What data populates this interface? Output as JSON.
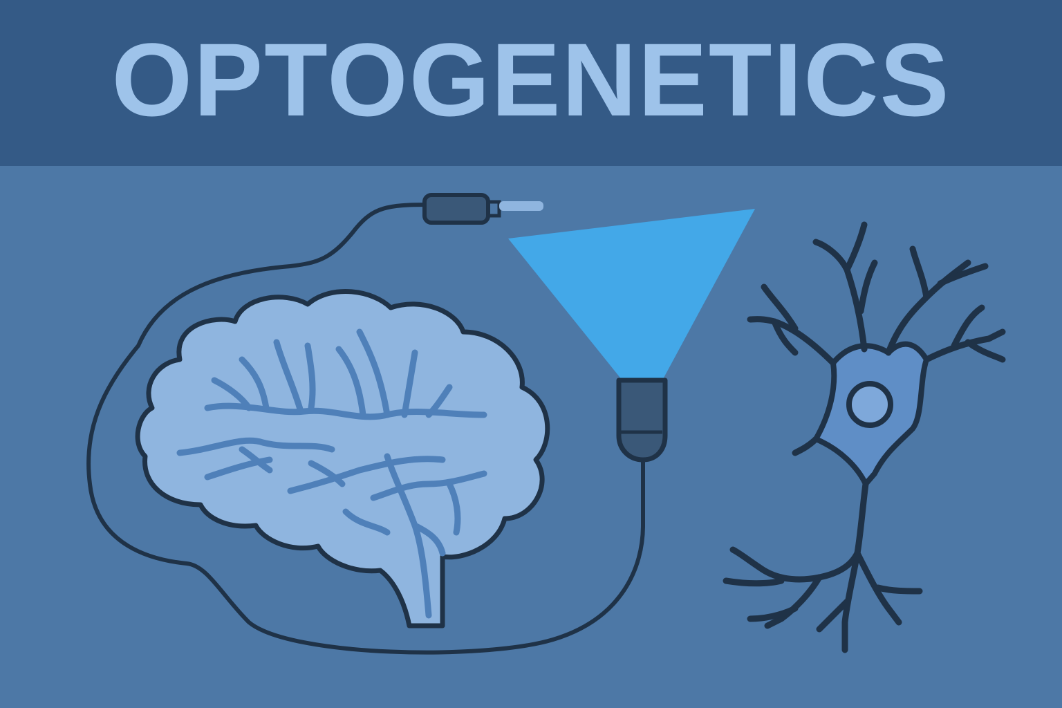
{
  "header": {
    "title": "OPTOGENETICS"
  },
  "colors": {
    "header_bg": "#345a86",
    "background": "#4d78a6",
    "title_text": "#9ec3ea",
    "outline": "#1f3247",
    "brain_fill": "#8fb5df",
    "brain_folds": "#4f80b9",
    "light_beam": "#43a8e8",
    "neuron_fill": "#5f8ec6"
  },
  "icons": [
    "brain-icon",
    "optical-fiber-cable-icon",
    "light-emitter-icon",
    "light-beam-icon",
    "neuron-icon"
  ]
}
